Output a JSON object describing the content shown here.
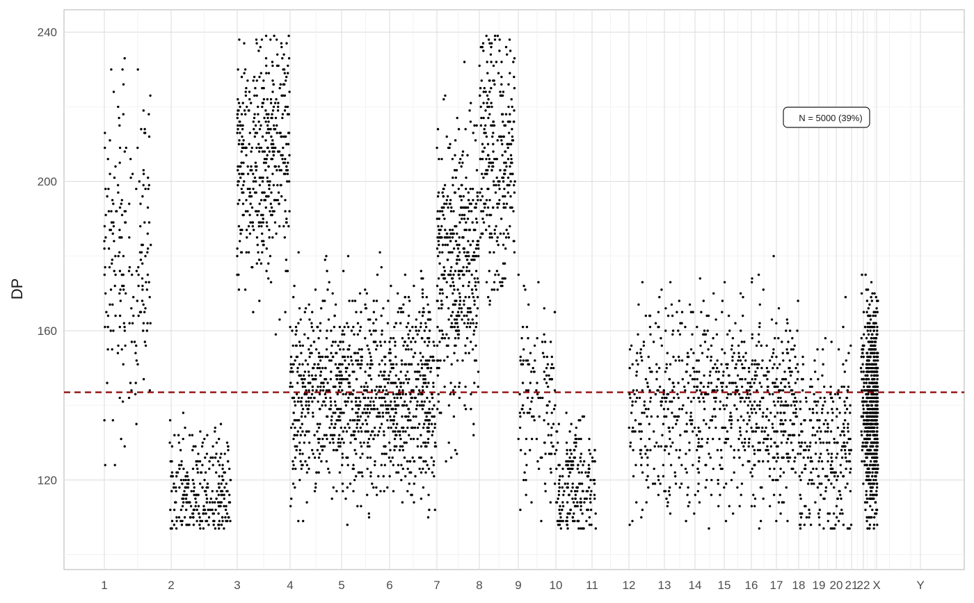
{
  "chart_data": {
    "type": "scatter",
    "title": "",
    "xlabel": "",
    "ylabel": "DP",
    "x_ticks": [
      "1",
      "2",
      "3",
      "4",
      "5",
      "6",
      "7",
      "8",
      "9",
      "10",
      "11",
      "12",
      "13",
      "14",
      "15",
      "16",
      "17",
      "18",
      "19",
      "20",
      "21",
      "22",
      "X",
      "Y"
    ],
    "y_ticks": [
      120,
      160,
      200,
      240
    ],
    "ylim": [
      96,
      246
    ],
    "grid": true,
    "reference_line": {
      "y": 143.5,
      "style": "dashed",
      "color": "#8b0000"
    },
    "annotation": "N = 5000 (39%)",
    "point_color": "#000000",
    "segments": [
      {
        "chrom": "1",
        "x_start": 1.0,
        "x_end": 1.33,
        "center": 179,
        "spread": 20,
        "n": 110
      },
      {
        "chrom": "1",
        "x_start": 1.36,
        "x_end": 1.7,
        "center": 180,
        "spread": 18,
        "n": 90
      },
      {
        "chrom": "2",
        "x_start": 1.98,
        "x_end": 2.9,
        "center": 117,
        "spread": 8,
        "n": 260
      },
      {
        "chrom": "3",
        "x_start": 3.0,
        "x_end": 3.99,
        "center": 206,
        "spread": 17,
        "n": 420
      },
      {
        "chrom": "4",
        "x_start": 4.0,
        "x_end": 6.98,
        "center": 143,
        "spread": 14,
        "n": 1100
      },
      {
        "chrom": "7",
        "x_start": 7.0,
        "x_end": 7.98,
        "center": 178,
        "spread": 19,
        "n": 420
      },
      {
        "chrom": "8",
        "x_start": 8.0,
        "x_end": 8.92,
        "center": 207,
        "spread": 18,
        "n": 280
      },
      {
        "chrom": "9",
        "x_start": 9.0,
        "x_end": 9.98,
        "center": 142,
        "spread": 14,
        "n": 130
      },
      {
        "chrom": "10",
        "x_start": 10.0,
        "x_end": 11.1,
        "center": 118,
        "spread": 8,
        "n": 200
      },
      {
        "chrom": "12",
        "x_start": 11.98,
        "x_end": 17.98,
        "center": 140,
        "spread": 14,
        "n": 850
      },
      {
        "chrom": "18",
        "x_start": 18.0,
        "x_end": 20.98,
        "center": 130,
        "spread": 13,
        "n": 280
      },
      {
        "chrom": "22",
        "x_start": 21.8,
        "x_end": 22.3,
        "center": 142,
        "spread": 14,
        "n": 70
      },
      {
        "chrom": "X",
        "x_start": 22.35,
        "x_end": 24.0,
        "center": 139,
        "spread": 14,
        "n": 640
      }
    ]
  }
}
